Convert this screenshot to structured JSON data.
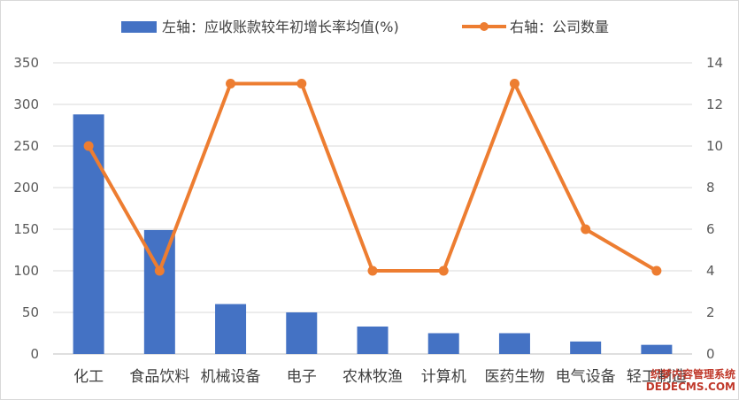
{
  "chart_data": {
    "type": "bar+line",
    "categories": [
      "化工",
      "食品饮料",
      "机械设备",
      "电子",
      "农林牧渔",
      "计算机",
      "医药生物",
      "电气设备",
      "轻工制造"
    ],
    "series": [
      {
        "name": "左轴：应收账款较年初增长率均值(%)",
        "type": "bar",
        "axis": "left",
        "color": "#4472c4",
        "values": [
          288,
          149,
          60,
          50,
          33,
          25,
          25,
          15,
          11
        ]
      },
      {
        "name": "右轴：公司数量",
        "type": "line",
        "axis": "right",
        "color": "#ed7d31",
        "values": [
          10,
          4,
          13,
          13,
          4,
          4,
          13,
          6,
          4
        ]
      }
    ],
    "left_axis": {
      "ylim": [
        0,
        350
      ],
      "ticks": [
        "0",
        "50",
        "100",
        "150",
        "200",
        "250",
        "300",
        "350"
      ]
    },
    "right_axis": {
      "ylim": [
        0,
        14
      ],
      "ticks": [
        "0",
        "2",
        "4",
        "6",
        "8",
        "10",
        "12",
        "14"
      ]
    },
    "grid": true,
    "legend_position": "top"
  },
  "watermark": {
    "line1": "织梦内容管理系统",
    "line2": "DEDECMS.COM"
  }
}
